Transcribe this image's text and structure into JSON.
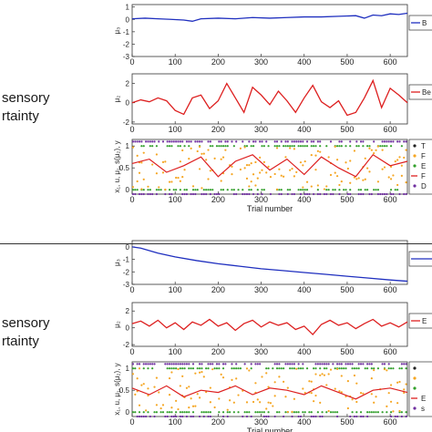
{
  "sections": [
    {
      "label_lines": [
        "sensory",
        "rtainty"
      ],
      "panels": [
        {
          "ylabel": "μ₃",
          "yticks": [
            -3,
            -2,
            -1,
            0,
            1
          ],
          "ylim": [
            -3,
            1.2
          ],
          "legend": "B",
          "xlabel": ""
        },
        {
          "ylabel": "μ₂",
          "yticks": [
            -2,
            0,
            2
          ],
          "ylim": [
            -2.2,
            3
          ],
          "legend": "Be",
          "xlabel": ""
        },
        {
          "ylabel": "x₁, u, μ₁, s(μ₂), y",
          "yticks": [
            0,
            0.5,
            1
          ],
          "ylim": [
            -0.1,
            1.15
          ],
          "legend_items": [
            "T",
            "F",
            "E",
            "F",
            "D"
          ],
          "xlabel": "Trial number"
        }
      ]
    },
    {
      "label_lines": [
        "sensory",
        "rtainty"
      ],
      "panels": [
        {
          "ylabel": "μ₃",
          "yticks": [
            -3,
            -2,
            -1,
            0
          ],
          "ylim": [
            -3,
            0.5
          ],
          "legend": "",
          "xlabel": ""
        },
        {
          "ylabel": "μ₂",
          "yticks": [
            -2,
            0,
            2
          ],
          "ylim": [
            -2.2,
            3
          ],
          "legend": "E",
          "xlabel": ""
        },
        {
          "ylabel": "x₁, u, μ₁, s(μ₂), y",
          "yticks": [
            0,
            0.5,
            1
          ],
          "ylim": [
            -0.1,
            1.15
          ],
          "legend_items": [
            "",
            "",
            "",
            "E",
            "s"
          ],
          "xlabel": "Trial number"
        }
      ]
    }
  ],
  "chart_data": [
    {
      "type": "line",
      "panel": "top-mu3",
      "xlim": [
        0,
        640
      ],
      "xticks": [
        0,
        100,
        200,
        300,
        400,
        500,
        600
      ],
      "series": [
        {
          "color": "#1f2fbf",
          "x": [
            0,
            30,
            60,
            90,
            120,
            140,
            160,
            200,
            240,
            280,
            320,
            360,
            400,
            440,
            480,
            520,
            540,
            560,
            580,
            600,
            620,
            640
          ],
          "y": [
            0.05,
            0.1,
            0.05,
            0.0,
            -0.05,
            -0.15,
            0.05,
            0.1,
            0.05,
            0.15,
            0.1,
            0.15,
            0.2,
            0.2,
            0.25,
            0.3,
            0.1,
            0.35,
            0.3,
            0.45,
            0.4,
            0.5
          ]
        }
      ]
    },
    {
      "type": "line",
      "panel": "top-mu2",
      "xlim": [
        0,
        640
      ],
      "series": [
        {
          "color": "#dd1f1f",
          "x": [
            0,
            20,
            40,
            60,
            80,
            100,
            120,
            140,
            160,
            180,
            200,
            220,
            240,
            260,
            280,
            300,
            320,
            340,
            360,
            380,
            400,
            420,
            440,
            460,
            480,
            500,
            520,
            540,
            560,
            580,
            600,
            620,
            640
          ],
          "y": [
            0,
            0.3,
            0.1,
            0.5,
            0.2,
            -0.8,
            -1.2,
            0.5,
            0.8,
            -0.6,
            0.2,
            2.0,
            0.5,
            -1.0,
            1.6,
            0.8,
            -0.2,
            1.2,
            0.2,
            -1.0,
            0.5,
            1.8,
            0.1,
            -0.5,
            0.2,
            -1.3,
            -1.0,
            0.5,
            2.3,
            -0.5,
            1.5,
            0.8,
            0
          ]
        }
      ]
    },
    {
      "type": "scatter",
      "panel": "top-obs",
      "xlim": [
        0,
        640
      ],
      "series": [
        {
          "name": "",
          "marker": "dot",
          "color": "#7030a0",
          "y_levels": [
            1.1,
            -0.1
          ]
        },
        {
          "name": "",
          "marker": "dot",
          "color": "#33a02c",
          "y_levels": [
            1.0,
            0.0
          ]
        },
        {
          "name": "",
          "marker": "dot",
          "color": "#f5a623",
          "y_levels": [
            0.75,
            0.25
          ]
        },
        {
          "name": "",
          "marker": "line",
          "color": "#dd1f1f",
          "x": [
            0,
            40,
            80,
            120,
            160,
            200,
            240,
            280,
            320,
            360,
            400,
            440,
            480,
            520,
            560,
            600,
            640
          ],
          "y": [
            0.6,
            0.7,
            0.4,
            0.55,
            0.75,
            0.3,
            0.65,
            0.8,
            0.45,
            0.7,
            0.35,
            0.75,
            0.5,
            0.3,
            0.8,
            0.55,
            0.65
          ]
        }
      ]
    },
    {
      "type": "line",
      "panel": "bottom-mu3",
      "xlim": [
        0,
        640
      ],
      "series": [
        {
          "color": "#1f2fbf",
          "x": [
            0,
            20,
            60,
            100,
            150,
            200,
            250,
            300,
            350,
            400,
            450,
            500,
            550,
            600,
            640
          ],
          "y": [
            0,
            -0.1,
            -0.5,
            -0.8,
            -1.1,
            -1.35,
            -1.55,
            -1.75,
            -1.9,
            -2.05,
            -2.2,
            -2.35,
            -2.5,
            -2.65,
            -2.75
          ]
        }
      ]
    },
    {
      "type": "line",
      "panel": "bottom-mu2",
      "xlim": [
        0,
        640
      ],
      "series": [
        {
          "color": "#dd1f1f",
          "x": [
            0,
            20,
            40,
            60,
            80,
            100,
            120,
            140,
            160,
            180,
            200,
            220,
            240,
            260,
            280,
            300,
            320,
            340,
            360,
            380,
            400,
            420,
            440,
            460,
            480,
            500,
            520,
            540,
            560,
            580,
            600,
            620,
            640
          ],
          "y": [
            0.5,
            0.8,
            0.2,
            0.9,
            0.0,
            0.6,
            -0.2,
            0.7,
            0.3,
            1.0,
            0.2,
            0.6,
            -0.3,
            0.5,
            0.9,
            0.1,
            0.7,
            0.3,
            0.6,
            -0.2,
            0.2,
            -0.8,
            0.4,
            0.9,
            0.3,
            0.6,
            -0.1,
            0.5,
            1.0,
            0.2,
            0.6,
            0.1,
            0.7
          ]
        }
      ]
    },
    {
      "type": "scatter",
      "panel": "bottom-obs",
      "xlim": [
        0,
        640
      ],
      "series": [
        {
          "name": "",
          "marker": "dot",
          "color": "#7030a0",
          "y_levels": [
            1.1,
            -0.1
          ]
        },
        {
          "name": "",
          "marker": "dot",
          "color": "#33a02c",
          "y_levels": [
            1.0,
            0.0
          ]
        },
        {
          "name": "",
          "marker": "dot",
          "color": "#f5a623",
          "y_levels": [
            0.75,
            0.25
          ]
        },
        {
          "name": "",
          "marker": "line",
          "color": "#dd1f1f",
          "x": [
            0,
            40,
            80,
            120,
            160,
            200,
            240,
            280,
            320,
            360,
            400,
            440,
            480,
            520,
            560,
            600,
            640
          ],
          "y": [
            0.55,
            0.4,
            0.6,
            0.35,
            0.5,
            0.45,
            0.6,
            0.4,
            0.55,
            0.5,
            0.4,
            0.6,
            0.45,
            0.3,
            0.5,
            0.55,
            0.45
          ]
        }
      ]
    }
  ]
}
